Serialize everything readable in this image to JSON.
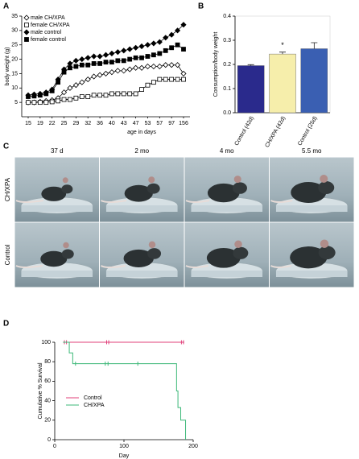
{
  "chart_data": [
    {
      "type": "line",
      "panel_label": "A",
      "ylabel": "body weight (g)",
      "xlabel": "age in days",
      "categories": [
        "15",
        null,
        "19",
        null,
        "22",
        null,
        "25",
        null,
        "29",
        null,
        "32",
        null,
        "36",
        null,
        "40",
        null,
        "43",
        null,
        "47",
        null,
        "53",
        null,
        "57",
        null,
        "97",
        null,
        "156"
      ],
      "ylim": [
        0,
        35
      ],
      "yticks": [
        5,
        10,
        15,
        20,
        25,
        30,
        35
      ],
      "legend": "upper left",
      "series": [
        {
          "name": "male CH/XPA",
          "color": "#000000",
          "marker": "diamond",
          "filled": false,
          "values": [
            5,
            5,
            5.2,
            5.5,
            5.8,
            6.5,
            8.5,
            10,
            11,
            12,
            13,
            14,
            14.5,
            15,
            15.5,
            16,
            16,
            16.5,
            17,
            17,
            17.5,
            17.5,
            17.5,
            18,
            18,
            18,
            15
          ]
        },
        {
          "name": "female CH/XPA",
          "color": "#000000",
          "marker": "square",
          "filled": false,
          "values": [
            5,
            5,
            5,
            5,
            5.2,
            5.5,
            6,
            6,
            6.5,
            7,
            7,
            7.5,
            7.5,
            7.5,
            8,
            8,
            8,
            8,
            8,
            9.5,
            11,
            12,
            13,
            13,
            13,
            13,
            13
          ]
        },
        {
          "name": "male control",
          "color": "#000000",
          "marker": "diamond",
          "filled": true,
          "values": [
            7.5,
            7.8,
            8,
            8.5,
            9.5,
            13,
            16.5,
            18.5,
            19.5,
            20,
            20.5,
            21,
            21,
            21.5,
            22,
            22.5,
            23,
            23.5,
            24,
            24.5,
            25,
            25.5,
            26,
            27.5,
            28.5,
            30,
            32
          ]
        },
        {
          "name": "female control",
          "color": "#000000",
          "marker": "square",
          "filled": true,
          "values": [
            7,
            7.2,
            7.5,
            8,
            9,
            12,
            15.5,
            17,
            17.5,
            18,
            18,
            18.5,
            18.5,
            19,
            19,
            19.5,
            19.5,
            20,
            20.5,
            20.5,
            21,
            21.5,
            22,
            23,
            24,
            25,
            23.5
          ]
        }
      ]
    },
    {
      "type": "bar",
      "panel_label": "B",
      "ylabel": "Consumption/body weight",
      "categories": [
        "Control (42d)",
        "CH/XPA (42d)",
        "Control (25d)"
      ],
      "values": [
        0.195,
        0.243,
        0.265
      ],
      "errors": [
        0.004,
        0.008,
        0.025
      ],
      "colors": [
        "#2a2a8c",
        "#f6eeab",
        "#3a5fb2"
      ],
      "ylim": [
        0,
        0.4
      ],
      "yticks": [
        {
          "value": 0,
          "label": "0.0"
        },
        0.1,
        0.2,
        0.3,
        0.4
      ],
      "annotations": [
        {
          "text": "*",
          "category": "CH/XPA (42d)"
        }
      ]
    },
    {
      "type": "line",
      "panel_label": "D",
      "ylabel": "Cumulative % Survival",
      "xlabel": "Day",
      "xlim": [
        0,
        200
      ],
      "xticks": [
        0,
        100,
        200
      ],
      "ylim": [
        0,
        100
      ],
      "yticks": [
        0,
        20,
        40,
        60,
        80,
        100
      ],
      "legend": "lower left",
      "series": [
        {
          "name": "Control",
          "color": "#e0407a",
          "x": [
            12,
            187
          ],
          "values": [
            100,
            100
          ],
          "censor_x": [
            14,
            17,
            75,
            78,
            183,
            186
          ],
          "censor_values": [
            100,
            100,
            100,
            100,
            100,
            100
          ]
        },
        {
          "name": "CH/XPA",
          "color": "#3cb878",
          "x": [
            12,
            21,
            21,
            26,
            26,
            176,
            176,
            178,
            178,
            182,
            182,
            189,
            189
          ],
          "values": [
            100,
            100,
            89,
            89,
            78,
            78,
            50,
            50,
            33,
            33,
            20,
            20,
            0
          ],
          "censor_x": [
            30,
            73,
            77,
            120
          ],
          "censor_values": [
            78,
            78,
            78,
            78
          ]
        }
      ]
    }
  ],
  "photo_panel": {
    "panel_label": "C",
    "columns": [
      "37 d",
      "2 mo",
      "4 mo",
      "5.5 mo"
    ],
    "rows": [
      "CH/XPA",
      "Control"
    ]
  }
}
